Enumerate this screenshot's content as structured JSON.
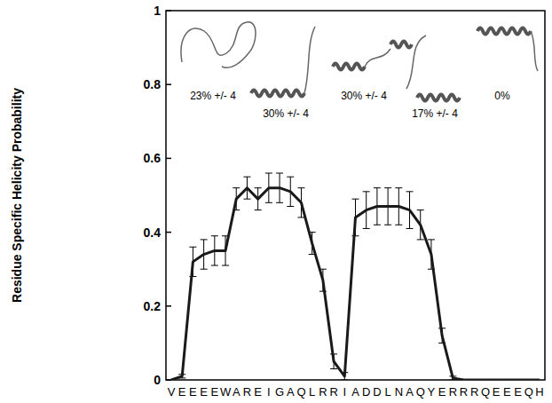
{
  "chart_data": {
    "type": "line",
    "y_label": "Residue Specific Helicity Probability",
    "categories": [
      "V",
      "E",
      "E",
      "E",
      "E",
      "W",
      "A",
      "R",
      "E",
      "I",
      "G",
      "A",
      "Q",
      "L",
      "R",
      "R",
      "I",
      "A",
      "D",
      "D",
      "L",
      "N",
      "A",
      "Q",
      "Y",
      "E",
      "R",
      "R",
      "R",
      "Q",
      "E",
      "E",
      "E",
      "Q",
      "H"
    ],
    "series": [
      {
        "color": "#1a1a1a",
        "values": [
          0,
          0.01,
          0.32,
          0.34,
          0.35,
          0.35,
          0.49,
          0.52,
          0.49,
          0.52,
          0.52,
          0.51,
          0.48,
          0.37,
          0.27,
          0.05,
          0.01,
          0.44,
          0.46,
          0.47,
          0.47,
          0.47,
          0.46,
          0.42,
          0.34,
          0.12,
          0.005,
          0,
          0,
          0,
          0,
          0,
          0,
          0,
          0
        ],
        "errors": [
          0,
          0.005,
          0.04,
          0.04,
          0.04,
          0.04,
          0.03,
          0.03,
          0.03,
          0.04,
          0.04,
          0.04,
          0.04,
          0.03,
          0.03,
          0.02,
          0.01,
          0.05,
          0.05,
          0.05,
          0.05,
          0.05,
          0.05,
          0.04,
          0.04,
          0.02,
          0.005,
          0,
          0,
          0,
          0,
          0,
          0,
          0,
          0
        ]
      }
    ],
    "ylim": [
      0,
      1
    ],
    "yticks": [
      0,
      0.2,
      0.4,
      0.6,
      0.8,
      1
    ],
    "grid": false,
    "annotations": [
      "23% +/- 4",
      "30% +/- 4",
      "30% +/- 4",
      "17% +/- 4",
      "0%"
    ]
  }
}
